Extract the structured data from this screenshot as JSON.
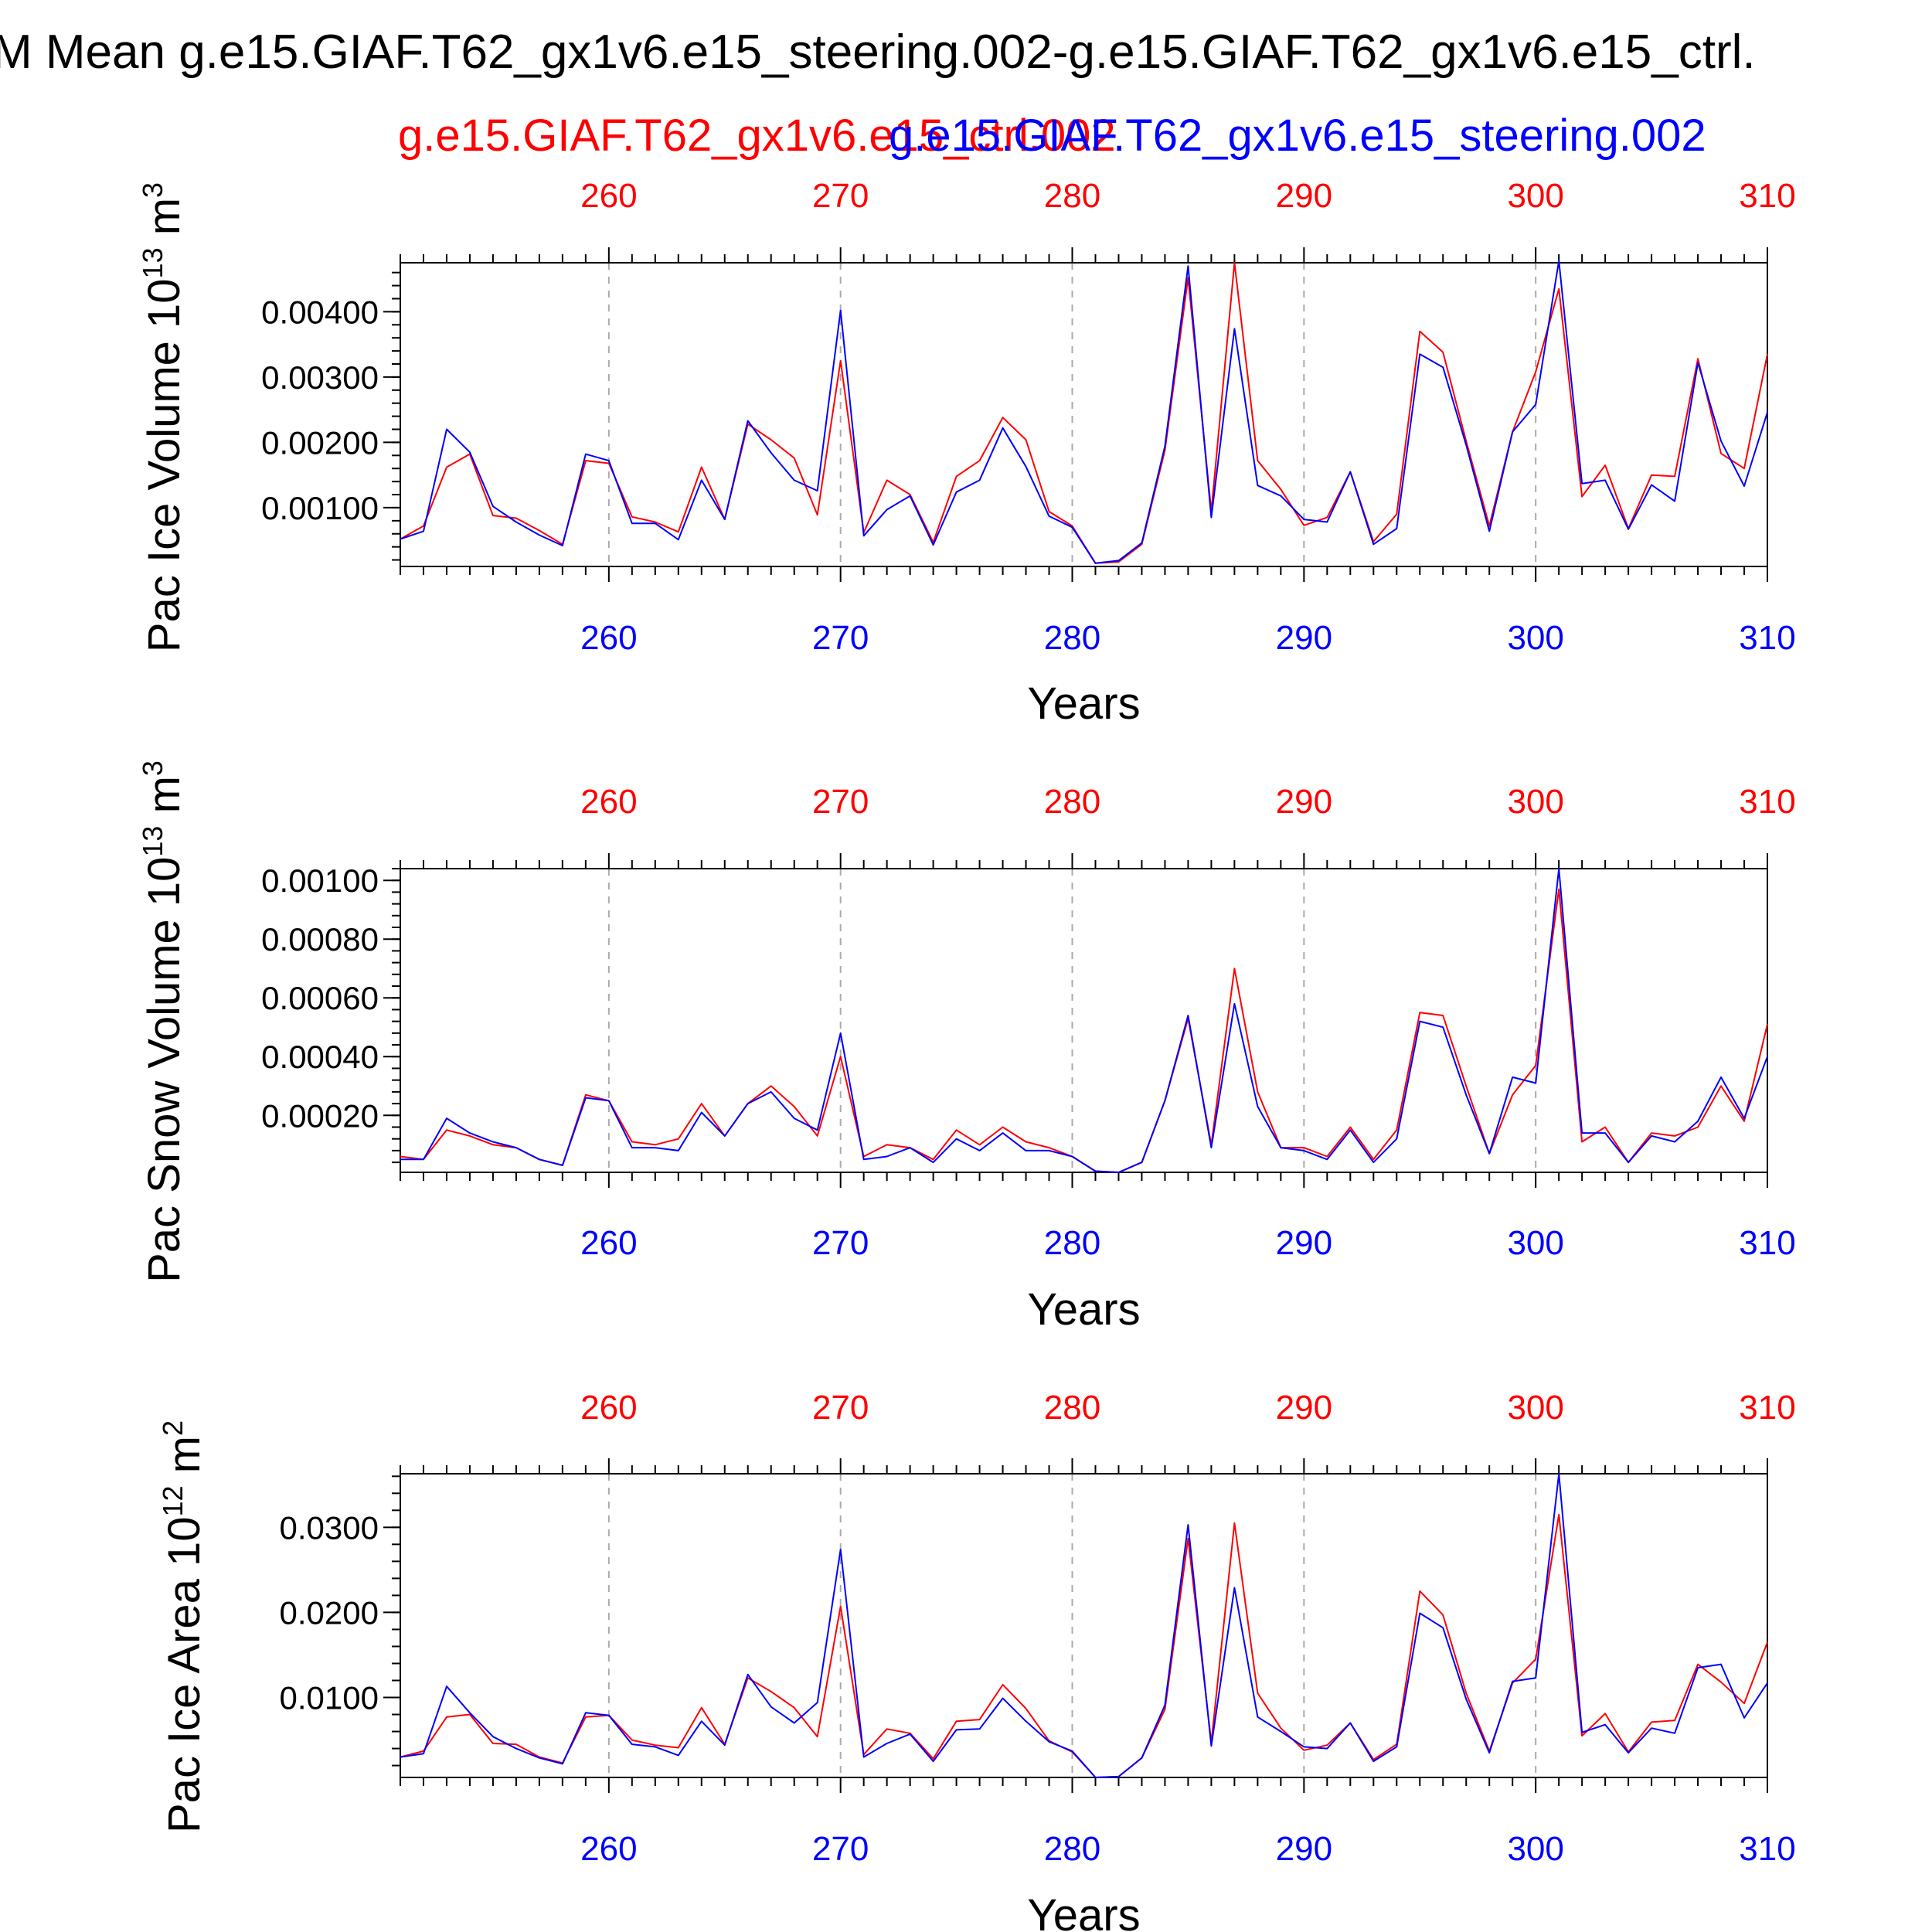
{
  "title": "M Mean g.e15.GIAF.T62_gx1v6.e15_steering.002-g.e15.GIAF.T62_gx1v6.e15_ctrl.",
  "legend": {
    "ctrl_label": "g.e15.GIAF.T62_gx1v6.e15_ctrl.002",
    "steering_label": "g.e15.GIAF.T62_gx1v6.e15_steering.002",
    "ctrl_color": "#ff0000",
    "steering_color": "#0000ff"
  },
  "colors": {
    "axis": "#000000",
    "grid": "#aaaaaa"
  },
  "chart_data": [
    {
      "type": "line",
      "title": "",
      "xlabel": "Years",
      "ylabel": "Pac Ice Volume 10",
      "ylabel_exp": "13",
      "ylabel_unit": " m",
      "ylabel_unit_exp": "3",
      "xlim": [
        251,
        310
      ],
      "ylim": [
        0.0001,
        0.00475
      ],
      "xticks": [
        260,
        270,
        280,
        290,
        300,
        310
      ],
      "yticks": [
        0.001,
        0.002,
        0.003,
        0.004
      ],
      "ytick_labels": [
        "0.00100",
        "0.00200",
        "0.00300",
        "0.00400"
      ],
      "grid": "vertical dashed at major x ticks",
      "x_start": 251,
      "series": [
        {
          "name": "g.e15.GIAF.T62_gx1v6.e15_ctrl.002",
          "color": "#ff0000",
          "values": [
            0.00052,
            0.00072,
            0.00162,
            0.00182,
            0.00088,
            0.00084,
            0.00065,
            0.00044,
            0.00172,
            0.00168,
            0.00086,
            0.00078,
            0.00063,
            0.00162,
            0.00082,
            0.00228,
            0.00204,
            0.00176,
            0.00089,
            0.00325,
            0.00062,
            0.00142,
            0.0012,
            0.00047,
            0.00148,
            0.00172,
            0.00238,
            0.00204,
            0.00094,
            0.00072,
            0.00015,
            0.00017,
            0.00044,
            0.00188,
            0.00452,
            0.00094,
            0.00475,
            0.00172,
            0.00128,
            0.00073,
            0.00085,
            0.00155,
            0.00048,
            0.0009,
            0.0037,
            0.00338,
            0.00202,
            0.00072,
            0.00216,
            0.00308,
            0.00435,
            0.00117,
            0.00165,
            0.00068,
            0.0015,
            0.00148,
            0.00328,
            0.00183,
            0.0016,
            0.00335
          ]
        },
        {
          "name": "g.e15.GIAF.T62_gx1v6.e15_steering.002",
          "color": "#0000ff",
          "values": [
            0.00052,
            0.00064,
            0.0022,
            0.00185,
            0.00102,
            0.00078,
            0.00058,
            0.00042,
            0.00182,
            0.00172,
            0.00076,
            0.00076,
            0.00051,
            0.00142,
            0.00082,
            0.00233,
            0.00184,
            0.00142,
            0.00126,
            0.00402,
            0.00057,
            0.00097,
            0.00118,
            0.00043,
            0.00124,
            0.00142,
            0.00222,
            0.00163,
            0.00087,
            0.0007,
            0.00015,
            0.00019,
            0.00046,
            0.00194,
            0.0047,
            0.00085,
            0.00374,
            0.00134,
            0.00118,
            0.00082,
            0.00078,
            0.00155,
            0.00044,
            0.00068,
            0.00335,
            0.00315,
            0.00196,
            0.00064,
            0.00216,
            0.00258,
            0.00478,
            0.00137,
            0.00142,
            0.00067,
            0.00135,
            0.0011,
            0.00322,
            0.00202,
            0.00133,
            0.00246
          ]
        }
      ]
    },
    {
      "type": "line",
      "title": "",
      "xlabel": "Years",
      "ylabel": "Pac Snow Volume 10",
      "ylabel_exp": "13",
      "ylabel_unit": " m",
      "ylabel_unit_exp": "3",
      "xlim": [
        251,
        310
      ],
      "ylim": [
        6e-06,
        0.00104
      ],
      "xticks": [
        260,
        270,
        280,
        290,
        300,
        310
      ],
      "yticks": [
        0.0002,
        0.0004,
        0.0006,
        0.0008,
        0.001
      ],
      "ytick_labels": [
        "0.00020",
        "0.00040",
        "0.00060",
        "0.00080",
        "0.00100"
      ],
      "grid": "vertical dashed at major x ticks",
      "x_start": 251,
      "series": [
        {
          "name": "g.e15.GIAF.T62_gx1v6.e15_ctrl.002",
          "color": "#ff0000",
          "values": [
            6e-05,
            5e-05,
            0.00015,
            0.00013,
            0.0001,
            9e-05,
            5e-05,
            3e-05,
            0.00027,
            0.00025,
            0.00011,
            0.0001,
            0.00012,
            0.00024,
            0.00013,
            0.00024,
            0.0003,
            0.00023,
            0.00013,
            0.0004,
            6e-05,
            0.0001,
            9e-05,
            5e-05,
            0.00015,
            0.0001,
            0.00016,
            0.00011,
            9e-05,
            6e-05,
            1e-05,
            6e-06,
            4e-05,
            0.00025,
            0.00053,
            0.0001,
            0.0007,
            0.00028,
            9e-05,
            9e-05,
            6e-05,
            0.00016,
            5e-05,
            0.00015,
            0.00055,
            0.00054,
            0.0003,
            7e-05,
            0.00027,
            0.00037,
            0.00097,
            0.00011,
            0.00016,
            4e-05,
            0.00014,
            0.00013,
            0.00016,
            0.0003,
            0.00018,
            0.00051
          ]
        },
        {
          "name": "g.e15.GIAF.T62_gx1v6.e15_steering.002",
          "color": "#0000ff",
          "values": [
            5e-05,
            5e-05,
            0.00019,
            0.00014,
            0.00011,
            9e-05,
            5e-05,
            3e-05,
            0.00026,
            0.00025,
            9e-05,
            9e-05,
            8e-05,
            0.00021,
            0.00013,
            0.00024,
            0.00028,
            0.00019,
            0.00015,
            0.00048,
            5e-05,
            6e-05,
            9e-05,
            4e-05,
            0.00012,
            8e-05,
            0.00014,
            8e-05,
            8e-05,
            6e-05,
            1e-05,
            6e-06,
            4e-05,
            0.00025,
            0.00054,
            9e-05,
            0.00058,
            0.00023,
            9e-05,
            8e-05,
            5e-05,
            0.00015,
            4e-05,
            0.00012,
            0.00052,
            0.0005,
            0.00027,
            7e-05,
            0.00033,
            0.00031,
            0.00104,
            0.00014,
            0.00014,
            4e-05,
            0.00013,
            0.00011,
            0.00018,
            0.00033,
            0.00019,
            0.0004
          ]
        }
      ]
    },
    {
      "type": "line",
      "title": "",
      "xlabel": "Years",
      "ylabel": "Pac Ice Area 10",
      "ylabel_exp": "12",
      "ylabel_unit": " m",
      "ylabel_unit_exp": "2",
      "xlim": [
        251,
        310
      ],
      "ylim": [
        0.0006,
        0.0363
      ],
      "xticks": [
        260,
        270,
        280,
        290,
        300,
        310
      ],
      "yticks": [
        0.01,
        0.02,
        0.03
      ],
      "ytick_labels": [
        "0.0100",
        "0.0200",
        "0.0300"
      ],
      "grid": "vertical dashed at major x ticks",
      "x_start": 251,
      "series": [
        {
          "name": "g.e15.GIAF.T62_gx1v6.e15_ctrl.002",
          "color": "#ff0000",
          "values": [
            0.003,
            0.0037,
            0.0077,
            0.008,
            0.0046,
            0.0045,
            0.003,
            0.0023,
            0.0077,
            0.0079,
            0.005,
            0.0044,
            0.0041,
            0.0088,
            0.0045,
            0.0123,
            0.0107,
            0.0088,
            0.0054,
            0.0207,
            0.0033,
            0.0063,
            0.0058,
            0.0028,
            0.0072,
            0.0074,
            0.0115,
            0.0087,
            0.0049,
            0.0036,
            0.0006,
            0.0007,
            0.0029,
            0.0086,
            0.0287,
            0.0047,
            0.0305,
            0.0105,
            0.0064,
            0.0038,
            0.0044,
            0.007,
            0.0027,
            0.0045,
            0.0225,
            0.0197,
            0.0105,
            0.0037,
            0.0117,
            0.0145,
            0.0315,
            0.0055,
            0.0081,
            0.0036,
            0.0071,
            0.0073,
            0.0139,
            0.0118,
            0.0093,
            0.0165
          ]
        },
        {
          "name": "g.e15.GIAF.T62_gx1v6.e15_steering.002",
          "color": "#0000ff",
          "values": [
            0.003,
            0.0034,
            0.0113,
            0.0082,
            0.0054,
            0.004,
            0.0029,
            0.0022,
            0.0082,
            0.0079,
            0.0045,
            0.0042,
            0.0032,
            0.0072,
            0.0044,
            0.0127,
            0.0089,
            0.007,
            0.0094,
            0.0274,
            0.003,
            0.0046,
            0.0057,
            0.0025,
            0.0062,
            0.0063,
            0.0099,
            0.0072,
            0.0048,
            0.0037,
            0.0006,
            0.0007,
            0.0029,
            0.0091,
            0.0303,
            0.0043,
            0.0229,
            0.0077,
            0.006,
            0.0042,
            0.004,
            0.007,
            0.0025,
            0.0042,
            0.0199,
            0.0182,
            0.0098,
            0.0035,
            0.0119,
            0.0123,
            0.0363,
            0.0059,
            0.0068,
            0.0035,
            0.0064,
            0.0058,
            0.0135,
            0.0139,
            0.0076,
            0.0117
          ]
        }
      ]
    }
  ]
}
